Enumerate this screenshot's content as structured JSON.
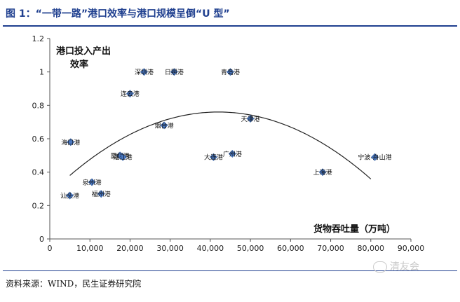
{
  "header": {
    "title": "图 1：“一带一路”港口效率与港口规模呈倒“U 型”"
  },
  "footer": {
    "source": "资料来源：WIND，民生证券研究院",
    "watermark": "清友会"
  },
  "colors": {
    "title": "#1f3f8f",
    "point": "#4a78c2",
    "curve": "#222222"
  },
  "chart_data": {
    "type": "scatter",
    "ylabel": "港口投入产出\n效率",
    "xlabel": "货物吞吐量（万吨）",
    "xlim": [
      0,
      90000
    ],
    "ylim": [
      0,
      1.2
    ],
    "xticks": [
      "0",
      "10,000",
      "20,000",
      "30,000",
      "40,000",
      "50,000",
      "60,000",
      "70,000",
      "80,000",
      "90,000"
    ],
    "yticks": [
      "0",
      "0.2",
      "0.4",
      "0.6",
      "0.8",
      "1",
      "1.2"
    ],
    "grid": false,
    "trendline": {
      "type": "quadratic",
      "x_range": [
        5000,
        80000
      ],
      "vertex_x": 42000,
      "peak_y": 0.76,
      "y_at_5000": 0.38,
      "y_at_80000": 0.35
    },
    "points": [
      {
        "name": "深圳港",
        "x": 23500,
        "y": 1.0
      },
      {
        "name": "日照港",
        "x": 31000,
        "y": 1.0
      },
      {
        "name": "青岛港",
        "x": 45000,
        "y": 1.0
      },
      {
        "name": "连云港",
        "x": 20000,
        "y": 0.87
      },
      {
        "name": "烟台港",
        "x": 28500,
        "y": 0.68
      },
      {
        "name": "天津港",
        "x": 50000,
        "y": 0.72
      },
      {
        "name": "海口港",
        "x": 5200,
        "y": 0.58
      },
      {
        "name": "厦门港",
        "x": 17500,
        "y": 0.5
      },
      {
        "name": "湛江港",
        "x": 18200,
        "y": 0.49
      },
      {
        "name": "大连港",
        "x": 40800,
        "y": 0.49
      },
      {
        "name": "广州港",
        "x": 45500,
        "y": 0.51
      },
      {
        "name": "宁波-舟山港",
        "x": 81000,
        "y": 0.49
      },
      {
        "name": "上海港",
        "x": 68000,
        "y": 0.4
      },
      {
        "name": "泉州港",
        "x": 10500,
        "y": 0.34
      },
      {
        "name": "福州港",
        "x": 12800,
        "y": 0.27
      },
      {
        "name": "汕头港",
        "x": 5000,
        "y": 0.26
      }
    ]
  }
}
